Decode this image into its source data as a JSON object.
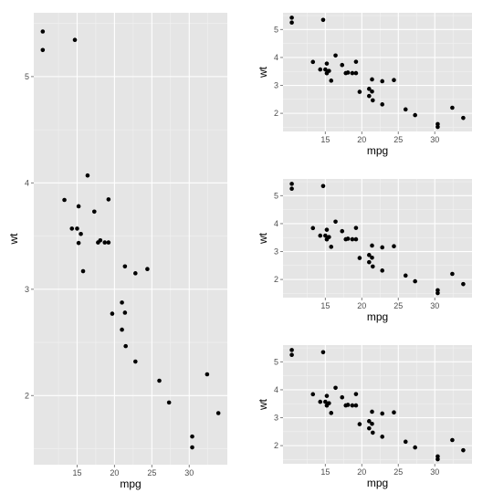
{
  "chart_data": [
    {
      "type": "scatter",
      "xlabel": "mpg",
      "ylabel": "wt",
      "xlim": [
        9.2,
        35.1
      ],
      "ylim": [
        1.35,
        5.6
      ],
      "xticks": [
        15,
        20,
        25,
        30
      ],
      "yticks": [
        2,
        3,
        4,
        5
      ],
      "grid": true,
      "x": [
        21.0,
        21.0,
        22.8,
        21.4,
        18.7,
        18.1,
        14.3,
        24.4,
        22.8,
        19.2,
        17.8,
        16.4,
        17.3,
        15.2,
        10.4,
        10.4,
        14.7,
        32.4,
        30.4,
        33.9,
        21.5,
        15.5,
        15.2,
        13.3,
        19.2,
        27.3,
        26.0,
        30.4,
        15.8,
        19.7,
        15.0,
        21.4
      ],
      "y": [
        2.62,
        2.875,
        2.32,
        3.215,
        3.44,
        3.46,
        3.57,
        3.19,
        3.15,
        3.44,
        3.44,
        4.07,
        3.73,
        3.78,
        5.25,
        5.424,
        5.345,
        2.2,
        1.615,
        1.835,
        2.465,
        3.52,
        3.435,
        3.84,
        3.845,
        1.935,
        2.14,
        1.513,
        3.17,
        2.77,
        3.57,
        2.78
      ]
    },
    {
      "type": "scatter",
      "xlabel": "mpg",
      "ylabel": "wt",
      "xlim": [
        9.2,
        35.1
      ],
      "ylim": [
        1.35,
        5.6
      ],
      "xticks": [
        15,
        20,
        25,
        30
      ],
      "yticks": [
        2,
        3,
        4,
        5
      ],
      "grid": true,
      "x": [
        21.0,
        21.0,
        22.8,
        21.4,
        18.7,
        18.1,
        14.3,
        24.4,
        22.8,
        19.2,
        17.8,
        16.4,
        17.3,
        15.2,
        10.4,
        10.4,
        14.7,
        32.4,
        30.4,
        33.9,
        21.5,
        15.5,
        15.2,
        13.3,
        19.2,
        27.3,
        26.0,
        30.4,
        15.8,
        19.7,
        15.0,
        21.4
      ],
      "y": [
        2.62,
        2.875,
        2.32,
        3.215,
        3.44,
        3.46,
        3.57,
        3.19,
        3.15,
        3.44,
        3.44,
        4.07,
        3.73,
        3.78,
        5.25,
        5.424,
        5.345,
        2.2,
        1.615,
        1.835,
        2.465,
        3.52,
        3.435,
        3.84,
        3.845,
        1.935,
        2.14,
        1.513,
        3.17,
        2.77,
        3.57,
        2.78
      ]
    },
    {
      "type": "scatter",
      "xlabel": "mpg",
      "ylabel": "wt",
      "xlim": [
        9.2,
        35.1
      ],
      "ylim": [
        1.35,
        5.6
      ],
      "xticks": [
        15,
        20,
        25,
        30
      ],
      "yticks": [
        2,
        3,
        4,
        5
      ],
      "grid": true,
      "x": [
        21.0,
        21.0,
        22.8,
        21.4,
        18.7,
        18.1,
        14.3,
        24.4,
        22.8,
        19.2,
        17.8,
        16.4,
        17.3,
        15.2,
        10.4,
        10.4,
        14.7,
        32.4,
        30.4,
        33.9,
        21.5,
        15.5,
        15.2,
        13.3,
        19.2,
        27.3,
        26.0,
        30.4,
        15.8,
        19.7,
        15.0,
        21.4
      ],
      "y": [
        2.62,
        2.875,
        2.32,
        3.215,
        3.44,
        3.46,
        3.57,
        3.19,
        3.15,
        3.44,
        3.44,
        4.07,
        3.73,
        3.78,
        5.25,
        5.424,
        5.345,
        2.2,
        1.615,
        1.835,
        2.465,
        3.52,
        3.435,
        3.84,
        3.845,
        1.935,
        2.14,
        1.513,
        3.17,
        2.77,
        3.57,
        2.78
      ]
    },
    {
      "type": "scatter",
      "xlabel": "mpg",
      "ylabel": "wt",
      "xlim": [
        9.2,
        35.1
      ],
      "ylim": [
        1.35,
        5.6
      ],
      "xticks": [
        15,
        20,
        25,
        30
      ],
      "yticks": [
        2,
        3,
        4,
        5
      ],
      "grid": true,
      "x": [
        21.0,
        21.0,
        22.8,
        21.4,
        18.7,
        18.1,
        14.3,
        24.4,
        22.8,
        19.2,
        17.8,
        16.4,
        17.3,
        15.2,
        10.4,
        10.4,
        14.7,
        32.4,
        30.4,
        33.9,
        21.5,
        15.5,
        15.2,
        13.3,
        19.2,
        27.3,
        26.0,
        30.4,
        15.8,
        19.7,
        15.0,
        21.4
      ],
      "y": [
        2.62,
        2.875,
        2.32,
        3.215,
        3.44,
        3.46,
        3.57,
        3.19,
        3.15,
        3.44,
        3.44,
        4.07,
        3.73,
        3.78,
        5.25,
        5.424,
        5.345,
        2.2,
        1.615,
        1.835,
        2.465,
        3.52,
        3.435,
        3.84,
        3.845,
        1.935,
        2.14,
        1.513,
        3.17,
        2.77,
        3.57,
        2.78
      ]
    }
  ]
}
